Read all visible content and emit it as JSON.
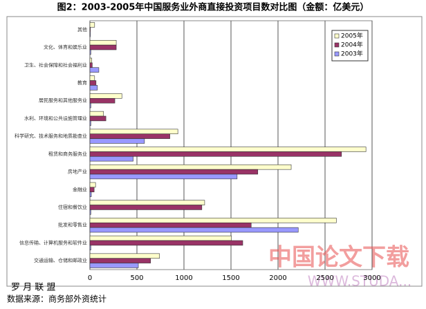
{
  "chart_data": {
    "type": "bar",
    "orientation": "horizontal",
    "title": "图2：2003-2005年中国服务业外商直接投资项目数对比图（金额：亿美元）",
    "categories": [
      "其他",
      "文化、体育和娱乐业",
      "卫生、社会保障和社会福利业",
      "教育",
      "居民服务和其他服务业",
      "水利、环境和公共设施管理业",
      "科学研究、技术服务和地质勘查业",
      "租赁和商务服务业",
      "房地产业",
      "金融业",
      "住宿和餐饮业",
      "批发和零售业",
      "信息传输、计算机服务和软件业",
      "交通运输、仓储和邮政业"
    ],
    "series": [
      {
        "name": "2005年",
        "color": "#ffffcc",
        "values": [
          50,
          280,
          20,
          50,
          340,
          145,
          935,
          2935,
          2140,
          60,
          1220,
          2620,
          1505,
          740
        ]
      },
      {
        "name": "2004年",
        "color": "#993366",
        "values": [
          5,
          280,
          25,
          65,
          265,
          170,
          850,
          2675,
          1785,
          45,
          1190,
          1715,
          1625,
          645
        ]
      },
      {
        "name": "2003年",
        "color": "#9999ff",
        "values": [
          5,
          10,
          95,
          80,
          10,
          10,
          580,
          460,
          1565,
          15,
          10,
          2215,
          10,
          515
        ]
      }
    ],
    "xlim": [
      0,
      3000
    ],
    "xticks": [
      0,
      500,
      1000,
      1500,
      2000,
      2500,
      3000
    ],
    "grid": true,
    "legend": "top-right",
    "footer": [
      "罗 月 联 盟",
      "数据来源：商务部外资统计"
    ],
    "watermark": [
      "中国论文下载",
      "WWW.STUDA..."
    ]
  }
}
